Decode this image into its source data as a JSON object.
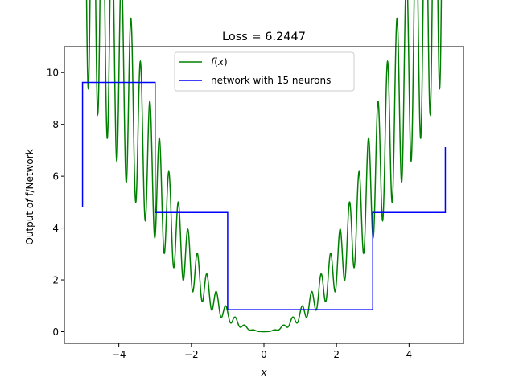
{
  "chart_data": {
    "type": "line",
    "title": "Loss = 6.2447",
    "xlabel": "x",
    "ylabel": "Output of f/Network",
    "xlim": [
      -5.5,
      5.5
    ],
    "ylim": [
      -0.45,
      11.0
    ],
    "xticks": [
      -4,
      -2,
      0,
      2,
      4
    ],
    "xtick_labels": [
      "−4",
      "−2",
      "0",
      "2",
      "4"
    ],
    "yticks": [
      0,
      2,
      4,
      6,
      8,
      10
    ],
    "ytick_labels": [
      "0",
      "2",
      "4",
      "6",
      "8",
      "10"
    ],
    "grid": false,
    "legend_position": "top-center",
    "series": [
      {
        "name": "f(x)",
        "color": "#008000",
        "function": "0.4*x^2 + 0.5*x^2*cos(12*x)^2, evaluated on [-5, 5]",
        "x_range": [
          -5,
          5
        ]
      },
      {
        "name": "network with 15 neurons",
        "color": "#0000ff",
        "step_x": [
          -5.0,
          -5.0,
          -3.0,
          -3.0,
          -1.0,
          -1.0,
          3.0,
          3.0,
          5.0,
          5.0
        ],
        "step_y": [
          4.8,
          9.62,
          9.62,
          4.6,
          4.6,
          0.85,
          0.85,
          4.6,
          4.6,
          7.12
        ]
      }
    ]
  }
}
